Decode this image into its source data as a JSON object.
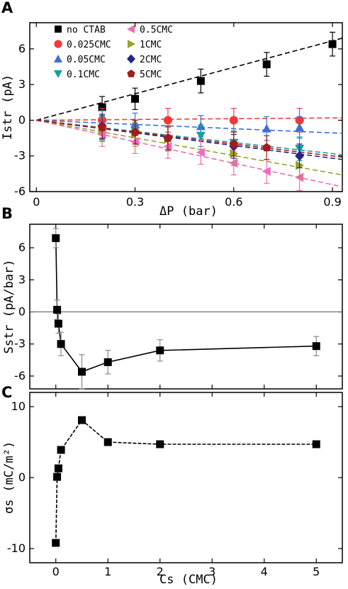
{
  "chart_data": [
    {
      "panel": "A",
      "type": "scatter",
      "xlabel": "ΔP (bar)",
      "ylabel": "Istr (pA)",
      "xlim": [
        -0.02,
        0.93
      ],
      "ylim": [
        -6,
        8.2
      ],
      "xticks": [
        "0",
        "0.3",
        "0.6",
        "0.9"
      ],
      "yticks": [
        "6",
        "3",
        "0",
        "-3",
        "-6"
      ],
      "legend_position": "top-left",
      "series": [
        {
          "name": "no CTAB",
          "color": "#000000",
          "marker": "square",
          "x": [
            0.2,
            0.3,
            0.5,
            0.7,
            0.9
          ],
          "y": [
            1.1,
            1.8,
            3.3,
            4.7,
            6.4
          ],
          "err": [
            0.9,
            0.9,
            1.0,
            1.0,
            1.0
          ],
          "fit": [
            0,
            6.9
          ]
        },
        {
          "name": "0.025CMC",
          "color": "#f03a3a",
          "marker": "circle",
          "x": [
            0.2,
            0.4,
            0.6,
            0.8
          ],
          "y": [
            0.0,
            0.0,
            0.0,
            0.0
          ],
          "err": [
            1.0,
            1.0,
            1.0,
            1.0
          ],
          "fit": [
            0,
            0.2
          ]
        },
        {
          "name": "0.05CMC",
          "color": "#3a6fd8",
          "marker": "triangle-up",
          "x": [
            0.2,
            0.3,
            0.5,
            0.7,
            0.8
          ],
          "y": [
            -0.2,
            -0.3,
            -0.5,
            -0.7,
            -0.6
          ],
          "err": [
            1.0,
            0.9,
            0.9,
            1.0,
            0.9
          ],
          "fit": [
            0,
            -1.1
          ]
        },
        {
          "name": "0.1CMC",
          "color": "#1a9e9e",
          "marker": "triangle-down",
          "x": [
            0.2,
            0.3,
            0.5,
            0.6,
            0.8
          ],
          "y": [
            -0.7,
            -0.9,
            -1.3,
            -1.9,
            -2.4
          ],
          "err": [
            1.0,
            0.9,
            0.9,
            1.0,
            1.0
          ],
          "fit": [
            0,
            -2.9
          ]
        },
        {
          "name": "0.5CMC",
          "color": "#f06ab8",
          "marker": "triangle-left",
          "x": [
            0.2,
            0.3,
            0.4,
            0.5,
            0.6,
            0.7,
            0.8
          ],
          "y": [
            -1.2,
            -1.8,
            -2.2,
            -2.7,
            -3.6,
            -4.3,
            -4.8
          ],
          "err": [
            1.0,
            1.0,
            1.0,
            1.0,
            1.0,
            1.0,
            1.1
          ],
          "fit": [
            0,
            -5.6
          ]
        },
        {
          "name": "1CMC",
          "color": "#9aa02a",
          "marker": "triangle-right",
          "x": [
            0.2,
            0.3,
            0.4,
            0.6,
            0.8
          ],
          "y": [
            -0.8,
            -1.2,
            -1.6,
            -2.8,
            -3.8
          ],
          "err": [
            1.0,
            1.0,
            1.0,
            1.0,
            1.0
          ],
          "fit": [
            0,
            -4.6
          ]
        },
        {
          "name": "2CMC",
          "color": "#23238c",
          "marker": "diamond",
          "x": [
            0.2,
            0.3,
            0.4,
            0.6,
            0.8
          ],
          "y": [
            -0.5,
            -1.0,
            -1.5,
            -2.2,
            -3.0
          ],
          "err": [
            1.0,
            1.0,
            1.0,
            1.0,
            1.0
          ],
          "fit": [
            0,
            -3.3
          ]
        },
        {
          "name": "5CMC",
          "color": "#a51a1a",
          "marker": "pentagon",
          "x": [
            0.2,
            0.3,
            0.4,
            0.6,
            0.7
          ],
          "y": [
            -0.6,
            -1.0,
            -1.5,
            -2.0,
            -2.3
          ],
          "err": [
            1.0,
            1.0,
            1.0,
            1.0,
            1.0
          ],
          "fit": [
            0,
            -3.1
          ]
        }
      ]
    },
    {
      "panel": "B",
      "type": "line",
      "xlabel": "",
      "ylabel": "Sstr (pA/bar)",
      "xlim": [
        -0.5,
        5.5
      ],
      "ylim": [
        -7.2,
        8.2
      ],
      "yticks": [
        "6",
        "3",
        "0",
        "-3",
        "-6"
      ],
      "zero_line": true,
      "series": [
        {
          "name": "",
          "color": "#000000",
          "x": [
            0,
            0.025,
            0.05,
            0.1,
            0.5,
            1,
            2,
            5
          ],
          "y": [
            6.9,
            0.2,
            -1.1,
            -3.0,
            -5.6,
            -4.7,
            -3.6,
            -3.2
          ],
          "err": [
            0.9,
            0.9,
            0.9,
            1.1,
            1.6,
            1.1,
            1.0,
            0.9
          ]
        }
      ]
    },
    {
      "panel": "C",
      "type": "line",
      "xlabel": "Cs (CMC)",
      "ylabel": "σs (mC/m²)",
      "xlim": [
        -0.5,
        5.5
      ],
      "ylim": [
        -12,
        12
      ],
      "xticks": [
        "0",
        "1",
        "2",
        "3",
        "4",
        "5"
      ],
      "yticks": [
        "10",
        "0",
        "-10"
      ],
      "series": [
        {
          "name": "",
          "color": "#000000",
          "x": [
            0,
            0.025,
            0.05,
            0.1,
            0.5,
            1,
            2,
            5
          ],
          "y": [
            -9.2,
            0.1,
            1.3,
            3.9,
            8.1,
            5.0,
            4.7,
            4.7
          ]
        }
      ]
    }
  ],
  "panels": {
    "a": {
      "letter": "A",
      "xlabel": "ΔP (bar)",
      "ylabel": "Istr (pA)"
    },
    "b": {
      "letter": "B",
      "ylabel": "Sstr (pA/bar)"
    },
    "c": {
      "letter": "C",
      "xlabel": "Cs (CMC)",
      "ylabel": "σs (mC/m²)"
    }
  }
}
